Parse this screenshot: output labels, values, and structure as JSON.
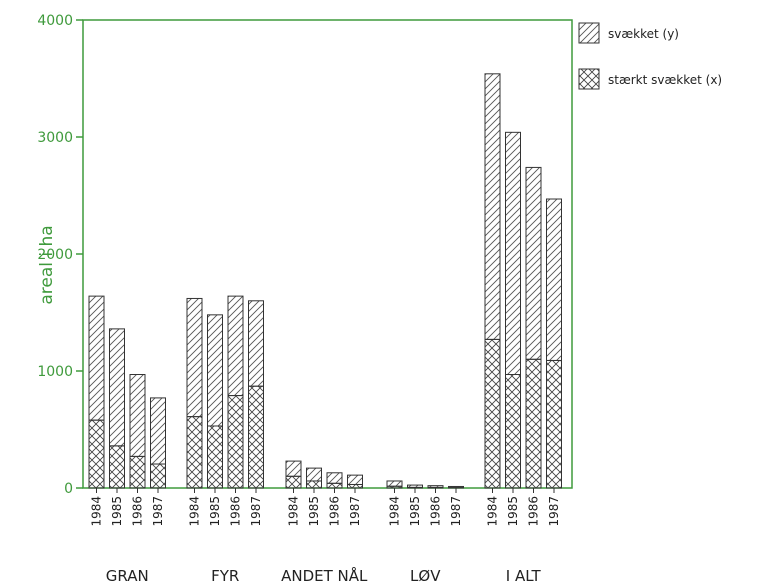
{
  "chart_data": {
    "type": "bar",
    "stacked": true,
    "ylabel": "areal i ha",
    "ylim": [
      0,
      4000
    ],
    "yticks": [
      "0",
      "1000",
      "2000",
      "3000",
      "4000"
    ],
    "groups": [
      {
        "label": "GRAN",
        "years": [
          "1984",
          "1985",
          "1986",
          "1987"
        ],
        "x": [
          580,
          360,
          270,
          205
        ],
        "y": [
          1060,
          1000,
          700,
          565
        ]
      },
      {
        "label": "FYR",
        "years": [
          "1984",
          "1985",
          "1986",
          "1987"
        ],
        "x": [
          610,
          530,
          790,
          870
        ],
        "y": [
          1010,
          950,
          850,
          730
        ]
      },
      {
        "label": "ANDET NÅL",
        "years": [
          "1984",
          "1985",
          "1986",
          "1987"
        ],
        "x": [
          100,
          60,
          40,
          30
        ],
        "y": [
          130,
          110,
          90,
          80
        ]
      },
      {
        "label": "LØV",
        "years": [
          "1984",
          "1985",
          "1986",
          "1987"
        ],
        "x": [
          15,
          5,
          5,
          3
        ],
        "y": [
          45,
          20,
          15,
          10
        ]
      },
      {
        "label": "I ALT",
        "years": [
          "1984",
          "1985",
          "1986",
          "1987"
        ],
        "x": [
          1270,
          970,
          1100,
          1090
        ],
        "y": [
          2270,
          2070,
          1640,
          1380
        ]
      }
    ],
    "legend": [
      {
        "key": "y",
        "label": "svækket (y)",
        "pattern": "diagonal"
      },
      {
        "key": "x",
        "label": "stærkt svækket (x)",
        "pattern": "crosshatch"
      }
    ],
    "legend_position": "top-right",
    "colors": {
      "axis": "#3f9a3c",
      "bars": "#444444"
    }
  }
}
